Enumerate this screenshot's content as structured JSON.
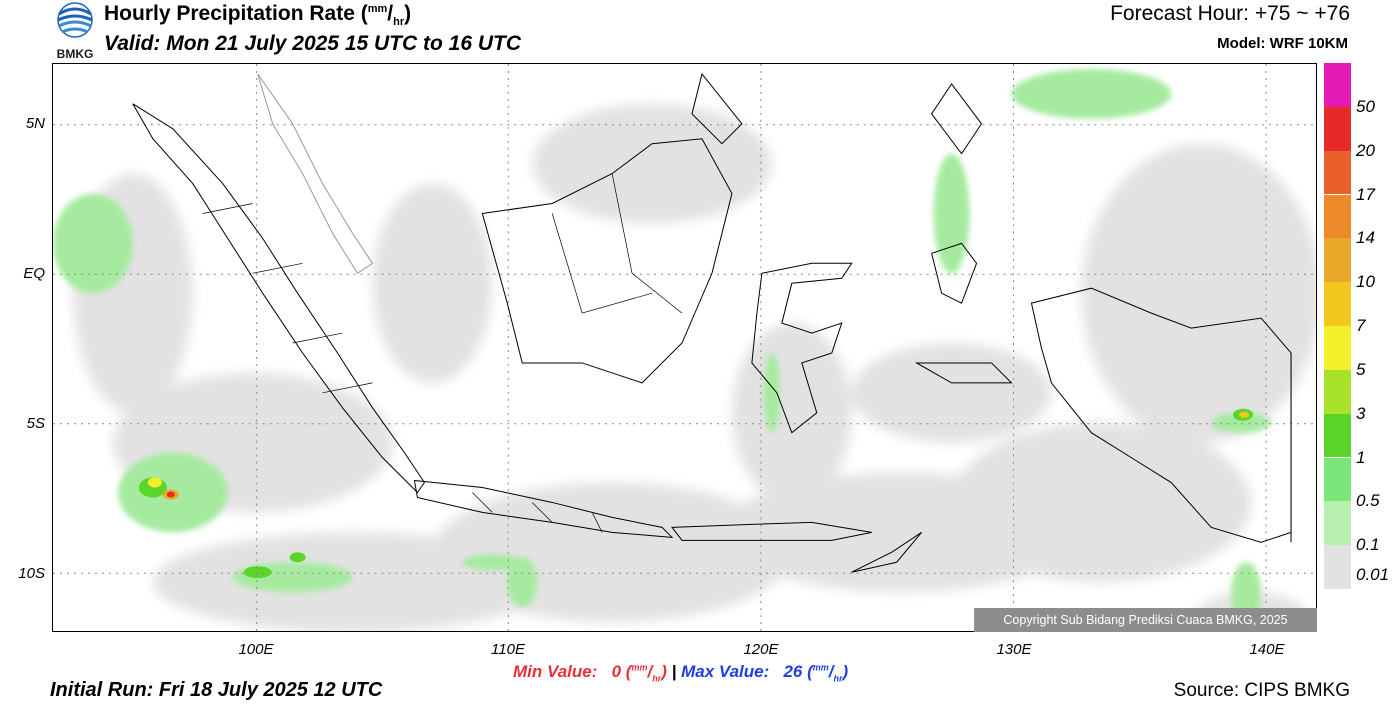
{
  "header": {
    "title": "Hourly Precipitation Rate (",
    "unit_top": "mm",
    "unit_bottom": "hr",
    "title_close": ")",
    "valid": "Valid: Mon 21 July 2025 15 UTC to 16 UTC",
    "forecast_hour": "Forecast Hour: +75 ~ +76",
    "model": "Model: WRF 10KM",
    "logo_text": "BMKG"
  },
  "map": {
    "lat_labels": [
      "5N",
      "EQ",
      "5S",
      "10S"
    ],
    "lon_labels": [
      "100E",
      "110E",
      "120E",
      "130E",
      "140E"
    ],
    "copyright": "Copyright Sub Bidang Prediksi Cuaca BMKG, 2025"
  },
  "colorbar": {
    "labels": [
      "50",
      "20",
      "17",
      "14",
      "10",
      "7",
      "5",
      "3",
      "1",
      "0.5",
      "0.1",
      "0.01"
    ],
    "colors": [
      "#e31ab4",
      "#e62a2a",
      "#e8602a",
      "#ec8a2a",
      "#e8a82a",
      "#f2c81f",
      "#f2f02a",
      "#a8e22a",
      "#5ad62a",
      "#7ce67a",
      "#b8f0b0",
      "#e2e2e2"
    ]
  },
  "footer": {
    "initial_run": "Initial Run: Fri 18 July 2025 12 UTC",
    "min_label": "Min Value:",
    "min_value": "0",
    "max_label": "Max Value:",
    "max_value": "26",
    "separator": "|",
    "source": "Source: CIPS BMKG"
  }
}
